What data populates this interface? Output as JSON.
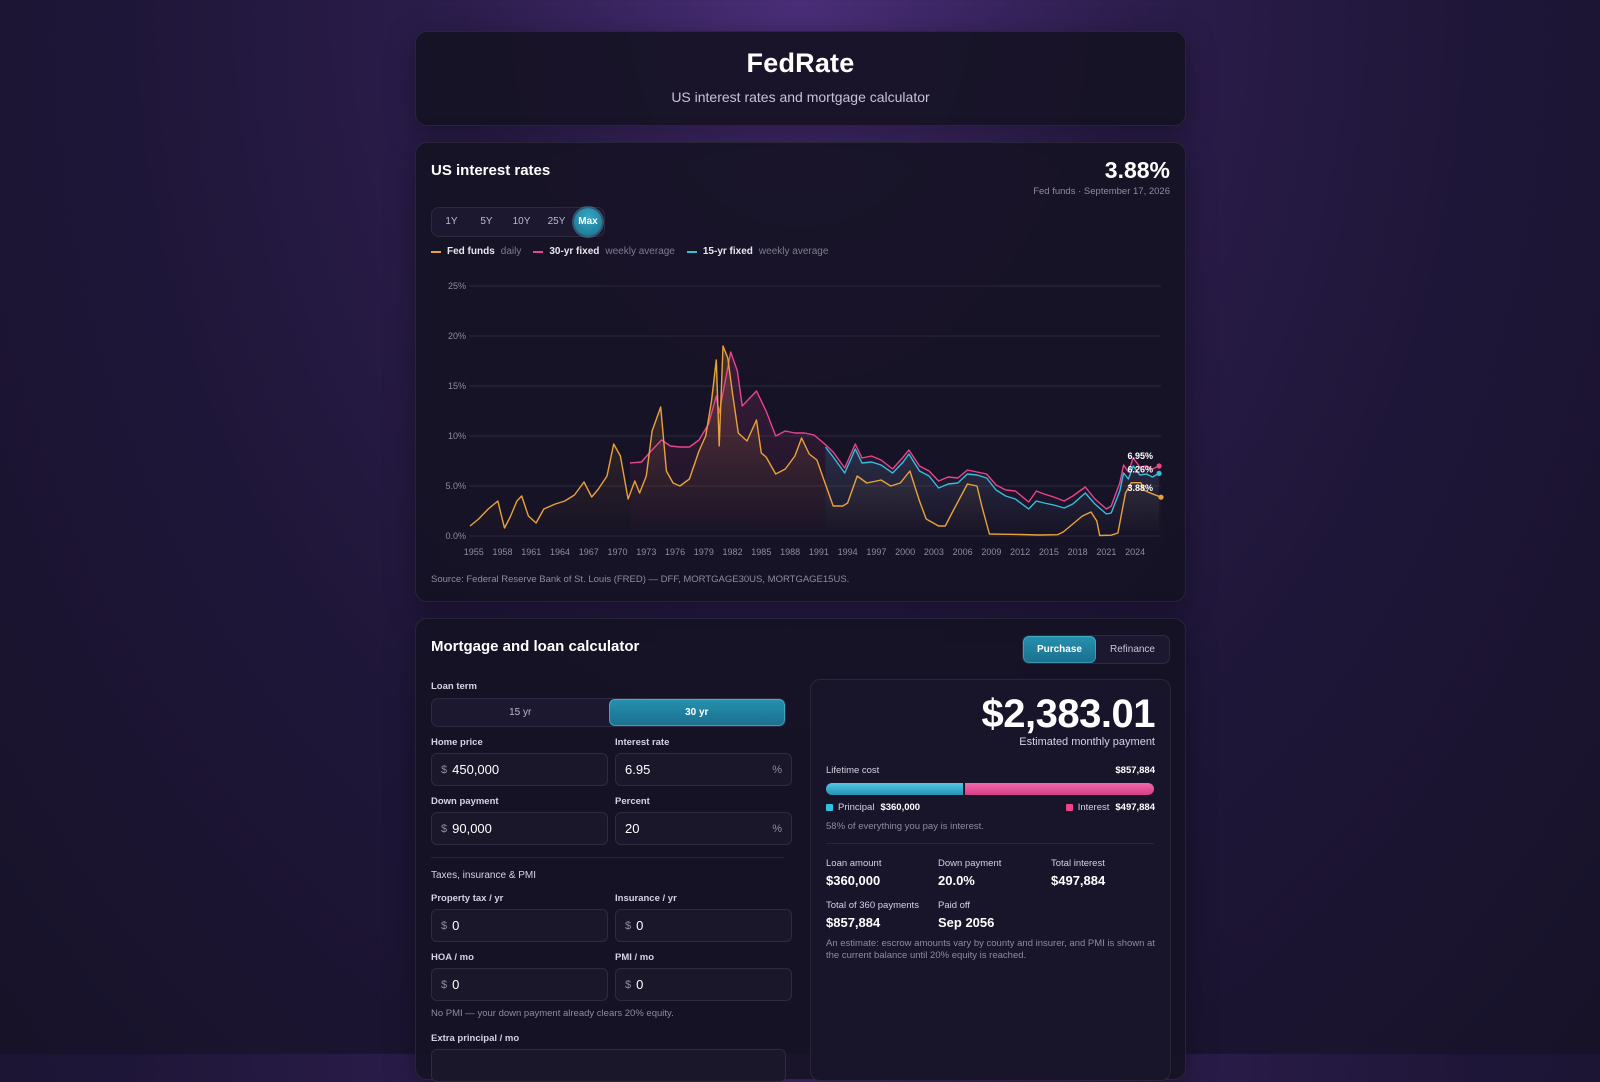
{
  "header": {
    "title": "FedRate",
    "subtitle": "US interest rates and mortgage calculator"
  },
  "rates": {
    "title": "US interest rates",
    "current_value": "3.88%",
    "current_caption": "Fed funds · September 17, 2026",
    "ranges": [
      "1Y",
      "5Y",
      "10Y",
      "25Y",
      "Max"
    ],
    "active_range": "Max",
    "legend": [
      {
        "name": "Fed funds",
        "note": "daily",
        "color": "#e9a23b"
      },
      {
        "name": "30-yr fixed",
        "note": "weekly average",
        "color": "#e8458b"
      },
      {
        "name": "15-yr fixed",
        "note": "weekly average",
        "color": "#33bfe0"
      }
    ],
    "source": "Source: Federal Reserve Bank of St. Louis (FRED) — DFF, MORTGAGE30US, MORTGAGE15US."
  },
  "chart_data": {
    "type": "line",
    "x_ticks": [
      "1955",
      "1958",
      "1961",
      "1964",
      "1967",
      "1970",
      "1973",
      "1976",
      "1979",
      "1982",
      "1985",
      "1988",
      "1991",
      "1994",
      "1997",
      "2000",
      "2003",
      "2006",
      "2009",
      "2012",
      "2015",
      "2018",
      "2021",
      "2024"
    ],
    "y_ticks": [
      "0.0%",
      "5.0%",
      "10%",
      "15%",
      "20%",
      "25%"
    ],
    "ylim": [
      0,
      25
    ],
    "xlim": [
      1954.5,
      2026.7
    ],
    "end_labels": [
      "6.95%",
      "6.26%",
      "3.88%"
    ],
    "series": [
      {
        "name": "Fed funds",
        "color": "#e9a23b",
        "points": [
          [
            1954.6,
            1.0
          ],
          [
            1955.5,
            1.7
          ],
          [
            1956.5,
            2.7
          ],
          [
            1957.5,
            3.5
          ],
          [
            1958.2,
            0.8
          ],
          [
            1958.8,
            1.9
          ],
          [
            1959.5,
            3.5
          ],
          [
            1960.0,
            4.0
          ],
          [
            1960.7,
            2.0
          ],
          [
            1961.5,
            1.3
          ],
          [
            1962.3,
            2.7
          ],
          [
            1963.5,
            3.2
          ],
          [
            1964.5,
            3.5
          ],
          [
            1965.5,
            4.1
          ],
          [
            1966.5,
            5.4
          ],
          [
            1967.3,
            3.9
          ],
          [
            1968.0,
            4.7
          ],
          [
            1968.9,
            6.0
          ],
          [
            1969.6,
            9.2
          ],
          [
            1970.3,
            8.0
          ],
          [
            1971.1,
            3.7
          ],
          [
            1971.8,
            5.5
          ],
          [
            1972.3,
            4.3
          ],
          [
            1973.0,
            6.0
          ],
          [
            1973.6,
            10.5
          ],
          [
            1974.5,
            12.9
          ],
          [
            1975.1,
            6.5
          ],
          [
            1975.8,
            5.3
          ],
          [
            1976.5,
            5.0
          ],
          [
            1977.5,
            5.7
          ],
          [
            1978.5,
            8.5
          ],
          [
            1979.2,
            10.0
          ],
          [
            1979.8,
            13.5
          ],
          [
            1980.3,
            17.6
          ],
          [
            1980.6,
            9.0
          ],
          [
            1981.0,
            19.0
          ],
          [
            1981.5,
            17.8
          ],
          [
            1982.0,
            14.2
          ],
          [
            1982.6,
            10.3
          ],
          [
            1983.5,
            9.5
          ],
          [
            1984.5,
            11.6
          ],
          [
            1985.0,
            8.3
          ],
          [
            1985.5,
            7.9
          ],
          [
            1986.5,
            6.2
          ],
          [
            1987.5,
            6.7
          ],
          [
            1988.5,
            8.0
          ],
          [
            1989.2,
            9.8
          ],
          [
            1990.0,
            8.2
          ],
          [
            1990.8,
            7.6
          ],
          [
            1991.5,
            5.7
          ],
          [
            1992.5,
            3.0
          ],
          [
            1993.5,
            3.0
          ],
          [
            1994.0,
            3.3
          ],
          [
            1995.0,
            6.0
          ],
          [
            1996.0,
            5.3
          ],
          [
            1997.5,
            5.6
          ],
          [
            1998.5,
            5.0
          ],
          [
            1999.5,
            5.3
          ],
          [
            2000.5,
            6.5
          ],
          [
            2001.5,
            3.5
          ],
          [
            2002.2,
            1.7
          ],
          [
            2003.5,
            1.0
          ],
          [
            2004.2,
            1.0
          ],
          [
            2005.0,
            2.5
          ],
          [
            2006.5,
            5.2
          ],
          [
            2007.5,
            5.0
          ],
          [
            2008.0,
            3.0
          ],
          [
            2008.8,
            0.2
          ],
          [
            2010.0,
            0.18
          ],
          [
            2012.0,
            0.15
          ],
          [
            2014.0,
            0.1
          ],
          [
            2015.9,
            0.13
          ],
          [
            2016.5,
            0.4
          ],
          [
            2017.5,
            1.2
          ],
          [
            2018.5,
            2.0
          ],
          [
            2019.4,
            2.4
          ],
          [
            2020.0,
            1.5
          ],
          [
            2020.3,
            0.05
          ],
          [
            2021.5,
            0.08
          ],
          [
            2022.2,
            0.3
          ],
          [
            2022.6,
            2.3
          ],
          [
            2023.0,
            4.3
          ],
          [
            2023.6,
            5.33
          ],
          [
            2024.6,
            5.33
          ],
          [
            2024.9,
            4.6
          ],
          [
            2025.5,
            4.33
          ],
          [
            2026.7,
            3.88
          ]
        ]
      },
      {
        "name": "30-yr fixed",
        "color": "#e8458b",
        "points": [
          [
            1971.3,
            7.3
          ],
          [
            1972.5,
            7.4
          ],
          [
            1973.5,
            8.5
          ],
          [
            1974.6,
            9.6
          ],
          [
            1975.5,
            9.0
          ],
          [
            1976.5,
            8.9
          ],
          [
            1977.5,
            8.9
          ],
          [
            1978.5,
            9.6
          ],
          [
            1979.5,
            11.2
          ],
          [
            1980.3,
            14.0
          ],
          [
            1980.6,
            12.3
          ],
          [
            1981.8,
            18.4
          ],
          [
            1982.5,
            16.5
          ],
          [
            1983.0,
            13.0
          ],
          [
            1984.5,
            14.5
          ],
          [
            1985.5,
            12.5
          ],
          [
            1986.5,
            10.0
          ],
          [
            1987.5,
            10.5
          ],
          [
            1988.5,
            10.3
          ],
          [
            1989.5,
            10.3
          ],
          [
            1990.5,
            10.1
          ],
          [
            1991.5,
            9.3
          ],
          [
            1992.5,
            8.4
          ],
          [
            1993.7,
            6.8
          ],
          [
            1994.8,
            9.2
          ],
          [
            1995.5,
            7.8
          ],
          [
            1996.5,
            8.0
          ],
          [
            1997.5,
            7.6
          ],
          [
            1998.7,
            6.7
          ],
          [
            1999.8,
            7.9
          ],
          [
            2000.4,
            8.6
          ],
          [
            2001.5,
            7.0
          ],
          [
            2002.5,
            6.5
          ],
          [
            2003.5,
            5.5
          ],
          [
            2004.5,
            5.9
          ],
          [
            2005.5,
            5.8
          ],
          [
            2006.5,
            6.6
          ],
          [
            2007.5,
            6.4
          ],
          [
            2008.5,
            6.2
          ],
          [
            2009.5,
            5.1
          ],
          [
            2010.5,
            4.6
          ],
          [
            2011.5,
            4.5
          ],
          [
            2012.9,
            3.4
          ],
          [
            2013.7,
            4.5
          ],
          [
            2014.5,
            4.2
          ],
          [
            2015.5,
            3.9
          ],
          [
            2016.6,
            3.5
          ],
          [
            2017.5,
            4.0
          ],
          [
            2018.8,
            4.9
          ],
          [
            2019.8,
            3.7
          ],
          [
            2021.0,
            2.7
          ],
          [
            2021.5,
            3.0
          ],
          [
            2022.4,
            5.3
          ],
          [
            2022.8,
            7.1
          ],
          [
            2023.3,
            6.4
          ],
          [
            2023.8,
            7.8
          ],
          [
            2024.5,
            6.9
          ],
          [
            2025.2,
            7.0
          ],
          [
            2025.8,
            6.7
          ],
          [
            2026.5,
            7.0
          ]
        ]
      },
      {
        "name": "15-yr fixed",
        "color": "#33bfe0",
        "points": [
          [
            1991.7,
            8.9
          ],
          [
            1992.5,
            7.9
          ],
          [
            1993.7,
            6.3
          ],
          [
            1994.8,
            8.7
          ],
          [
            1995.5,
            7.3
          ],
          [
            1996.5,
            7.4
          ],
          [
            1997.5,
            7.1
          ],
          [
            1998.7,
            6.3
          ],
          [
            1999.8,
            7.4
          ],
          [
            2000.4,
            8.2
          ],
          [
            2001.5,
            6.5
          ],
          [
            2002.5,
            6.0
          ],
          [
            2003.5,
            4.8
          ],
          [
            2004.5,
            5.2
          ],
          [
            2005.5,
            5.3
          ],
          [
            2006.5,
            6.2
          ],
          [
            2007.5,
            6.1
          ],
          [
            2008.5,
            5.8
          ],
          [
            2009.5,
            4.6
          ],
          [
            2010.5,
            4.0
          ],
          [
            2011.5,
            3.7
          ],
          [
            2012.9,
            2.7
          ],
          [
            2013.7,
            3.5
          ],
          [
            2014.5,
            3.3
          ],
          [
            2015.5,
            3.1
          ],
          [
            2016.6,
            2.8
          ],
          [
            2017.5,
            3.2
          ],
          [
            2018.8,
            4.3
          ],
          [
            2019.8,
            3.2
          ],
          [
            2021.0,
            2.2
          ],
          [
            2021.5,
            2.3
          ],
          [
            2022.4,
            4.5
          ],
          [
            2022.8,
            6.3
          ],
          [
            2023.3,
            5.7
          ],
          [
            2023.8,
            7.0
          ],
          [
            2024.5,
            6.1
          ],
          [
            2025.2,
            6.2
          ],
          [
            2025.8,
            5.9
          ],
          [
            2026.5,
            6.26
          ]
        ]
      }
    ]
  },
  "calculator": {
    "title": "Mortgage and loan calculator",
    "modes": [
      "Purchase",
      "Refinance"
    ],
    "active_mode": "Purchase",
    "loan_term_label": "Loan term",
    "terms": [
      "15 yr",
      "30 yr"
    ],
    "active_term": "30 yr",
    "home_price": {
      "label": "Home price",
      "prefix": "$",
      "value": "450,000"
    },
    "interest_rate": {
      "label": "Interest rate",
      "value": "6.95",
      "suffix": "%"
    },
    "down_payment": {
      "label": "Down payment",
      "prefix": "$",
      "value": "90,000"
    },
    "percent": {
      "label": "Percent",
      "value": "20",
      "suffix": "%"
    },
    "taxes_heading": "Taxes, insurance & PMI",
    "property_tax": {
      "label": "Property tax / yr",
      "prefix": "$",
      "value": "0"
    },
    "insurance": {
      "label": "Insurance / yr",
      "prefix": "$",
      "value": "0"
    },
    "hoa": {
      "label": "HOA / mo",
      "prefix": "$",
      "value": "0"
    },
    "pmi": {
      "label": "PMI / mo",
      "prefix": "$",
      "value": "0"
    },
    "pmi_note": "No PMI — your down payment already clears 20% equity.",
    "extra_principal_label": "Extra principal / mo"
  },
  "summary": {
    "monthly_payment": "$2,383.01",
    "monthly_label": "Estimated monthly payment",
    "lifetime_label": "Lifetime cost",
    "lifetime_value": "$857,884",
    "principal_fraction": 0.42,
    "principal_color": "#33bfe0",
    "interest_color": "#e8458b",
    "principal_label": "Principal",
    "principal_value": "$360,000",
    "interest_label": "Interest",
    "interest_value": "$497,884",
    "interest_note": "58% of everything you pay is interest.",
    "loan_amount_label": "Loan amount",
    "loan_amount": "$360,000",
    "down_payment_label": "Down payment",
    "down_payment": "20.0%",
    "total_interest_label": "Total interest",
    "total_interest": "$497,884",
    "total_payments_label": "Total of 360 payments",
    "total_payments": "$857,884",
    "paid_off_label": "Paid off",
    "paid_off": "Sep 2056",
    "disclaimer": "An estimate: escrow amounts vary by county and insurer, and PMI is shown at the current balance until 20% equity is reached."
  }
}
